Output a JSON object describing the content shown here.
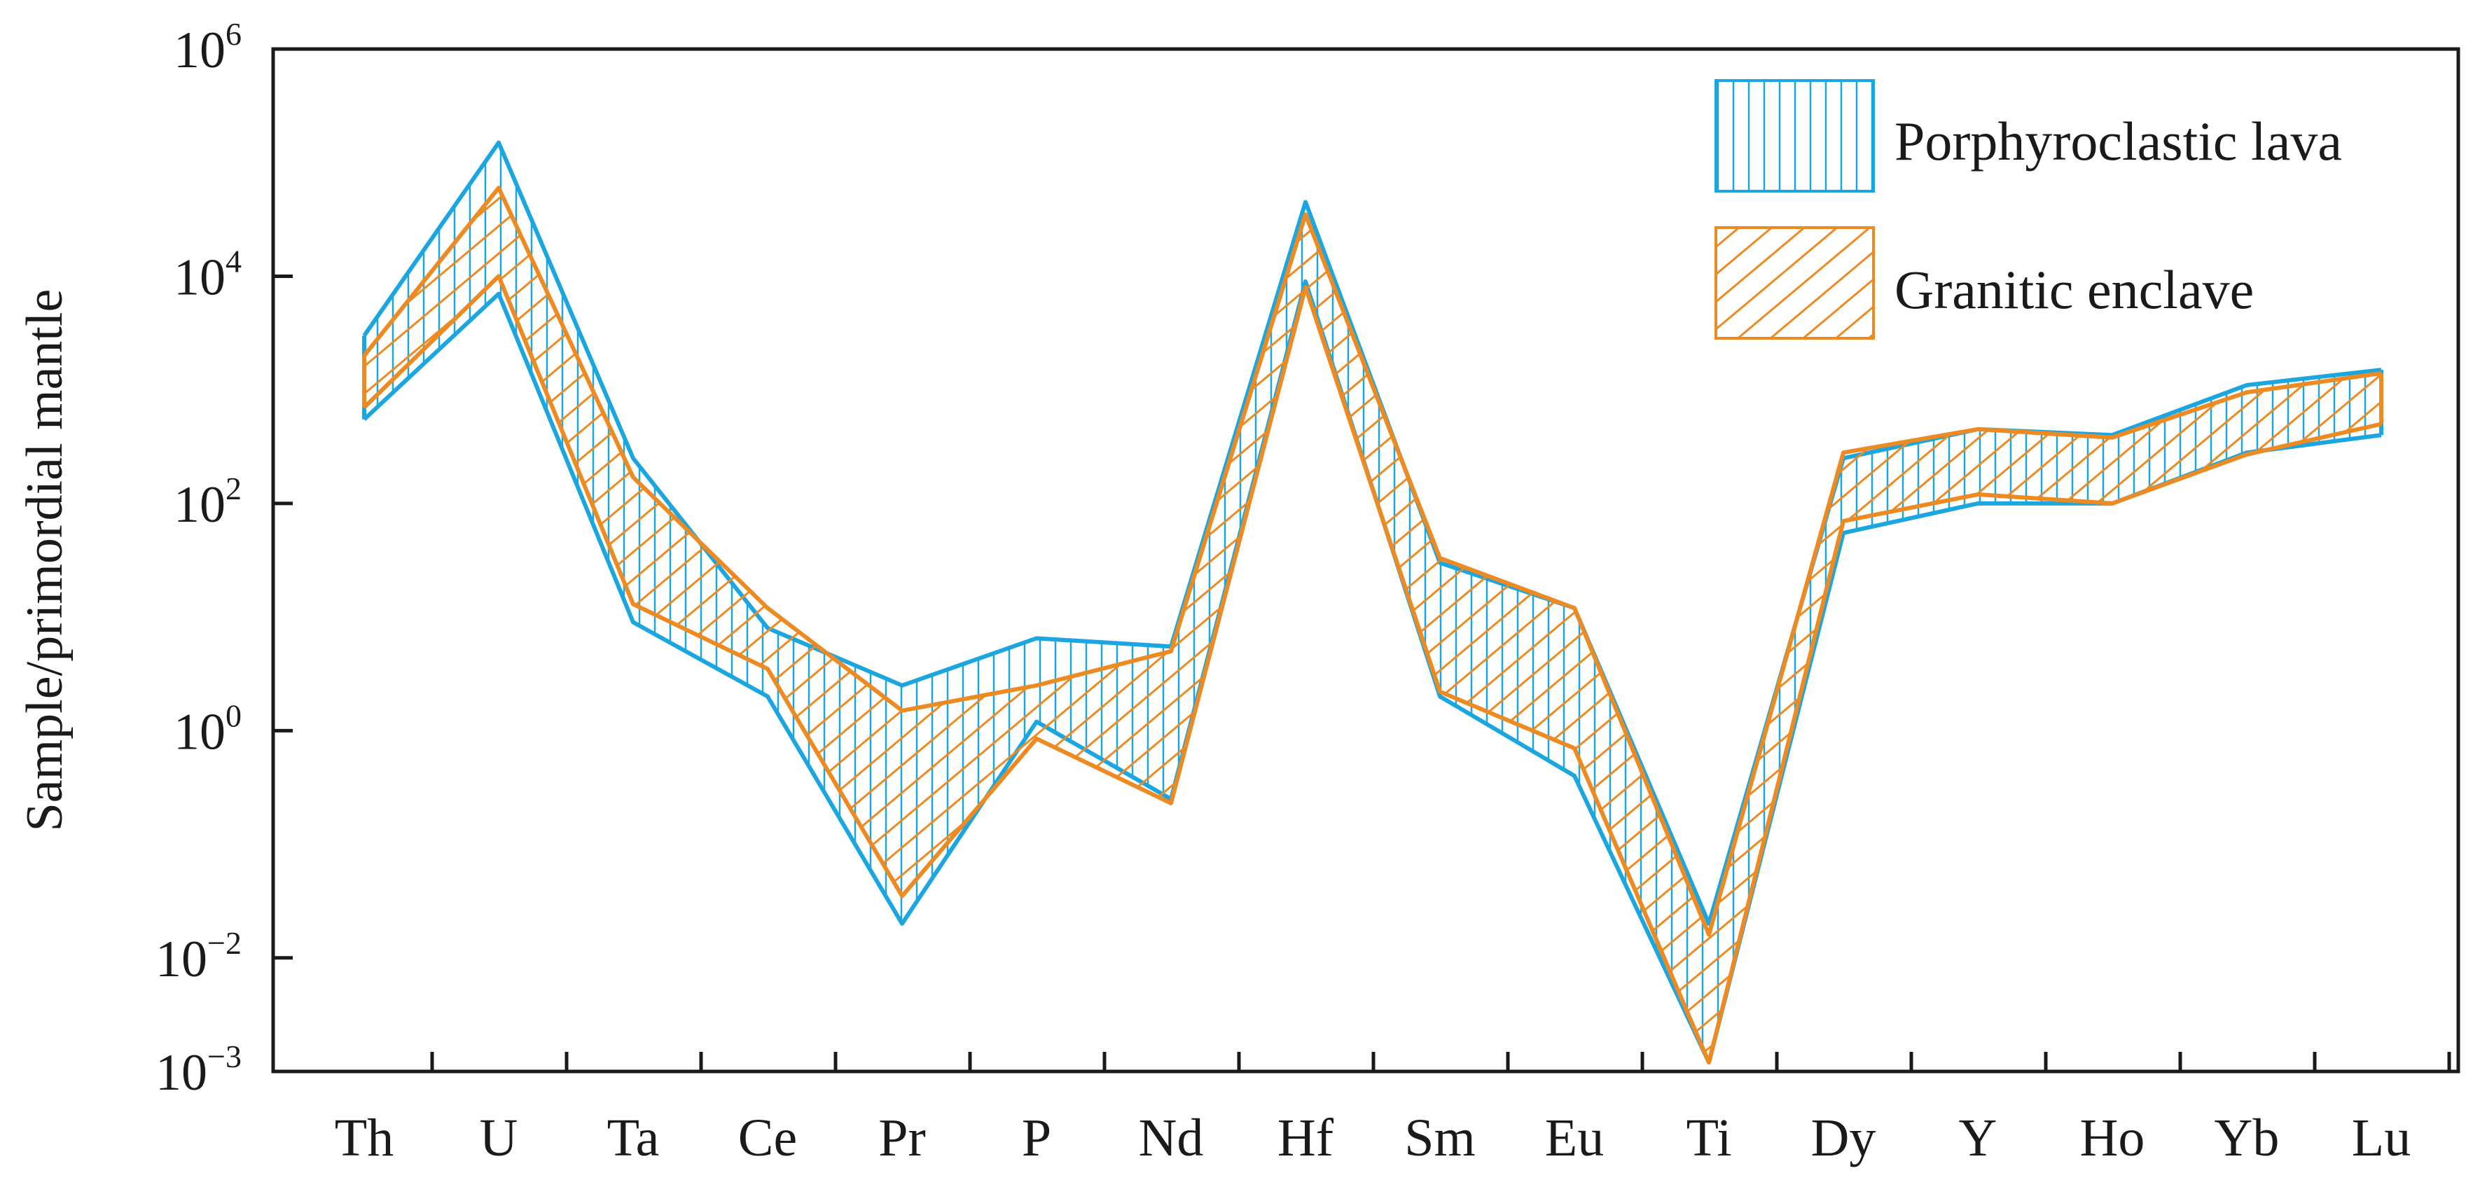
{
  "chart_data": {
    "type": "area",
    "title": "",
    "ylabel": "Sample/primordial mantle",
    "xlabel": "",
    "y_scale": "log",
    "ylim": [
      0.001,
      1000000
    ],
    "grid": false,
    "legend_position": "top-right",
    "categories": [
      "Th",
      "U",
      "Ta",
      "Ce",
      "Pr",
      "P",
      "Nd",
      "Hf",
      "Sm",
      "Eu",
      "Ti",
      "Dy",
      "Y",
      "Ho",
      "Yb",
      "Lu"
    ],
    "y_ticks": [
      {
        "label": "10",
        "exp": "6"
      },
      {
        "label": "10",
        "exp": "4"
      },
      {
        "label": "10",
        "exp": "2"
      },
      {
        "label": "10",
        "exp": "0"
      },
      {
        "label": "10",
        "exp": "−2"
      },
      {
        "label": "10",
        "exp": "−3"
      }
    ],
    "series": [
      {
        "name": "Porphyroclastic lava",
        "color": "#1ba6e0",
        "hatch": "vertical",
        "upper": [
          3000,
          150000,
          250,
          8,
          2.5,
          6.5,
          5.5,
          45000,
          30,
          12,
          0.02,
          250,
          450,
          400,
          1100,
          1500
        ],
        "lower": [
          550,
          7000,
          9,
          2,
          0.02,
          1.2,
          0.25,
          9000,
          2,
          0.4,
          0.0012,
          55,
          100,
          100,
          280,
          400
        ]
      },
      {
        "name": "Granitic enclave",
        "color": "#ee8a22",
        "hatch": "diagonal",
        "upper": [
          2000,
          60000,
          170,
          12,
          1.5,
          2.5,
          5,
          35000,
          33,
          12,
          0.016,
          280,
          450,
          380,
          950,
          1400
        ],
        "lower": [
          700,
          10000,
          13,
          3.5,
          0.035,
          0.85,
          0.23,
          8000,
          2.2,
          0.7,
          0.0012,
          70,
          120,
          100,
          270,
          500
        ]
      }
    ]
  }
}
